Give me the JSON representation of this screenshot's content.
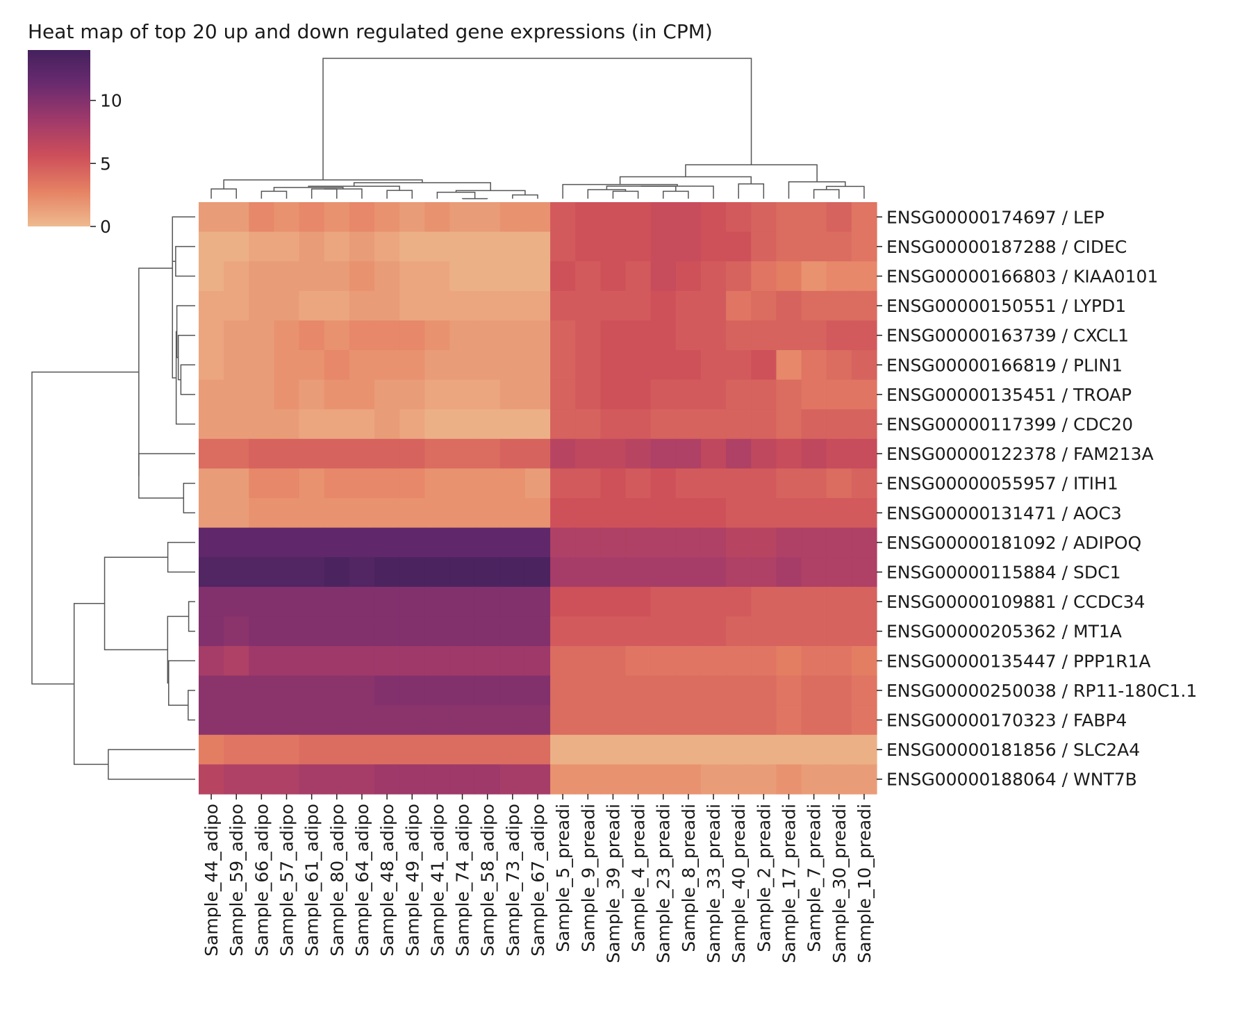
{
  "chart_data": {
    "type": "heatmap",
    "title": "Heat map of top 20 up and down regulated gene expressions (in CPM)",
    "xlabel": "",
    "ylabel": "",
    "colorbar": {
      "ticks": [
        0,
        5,
        10
      ],
      "min": 0,
      "max": 14,
      "colors": [
        "#eeba8f",
        "#e58264",
        "#cd4f5a",
        "#a03a6a",
        "#6b2b6f",
        "#44215c"
      ]
    },
    "dendrograms": {
      "rows": true,
      "columns": true
    },
    "rows": [
      "ENSG00000174697 / LEP",
      "ENSG00000187288 / CIDEC",
      "ENSG00000166803 / KIAA0101",
      "ENSG00000150551 / LYPD1",
      "ENSG00000163739 / CXCL1",
      "ENSG00000166819 / PLIN1",
      "ENSG00000135451 / TROAP",
      "ENSG00000117399 / CDC20",
      "ENSG00000122378 / FAM213A",
      "ENSG00000055957 / ITIH1",
      "ENSG00000131471 / AOC3",
      "ENSG00000181092 / ADIPOQ",
      "ENSG00000115884 / SDC1",
      "ENSG00000109881 / CCDC34",
      "ENSG00000205362 / MT1A",
      "ENSG00000135447 / PPP1R1A",
      "ENSG00000250038 / RP11-180C1.1",
      "ENSG00000170323 / FABP4",
      "ENSG00000181856 / SLC2A4",
      "ENSG00000188064 / WNT7B"
    ],
    "columns": [
      "Sample_44_adipo",
      "Sample_59_adipo",
      "Sample_66_adipo",
      "Sample_57_adipo",
      "Sample_61_adipo",
      "Sample_80_adipo",
      "Sample_64_adipo",
      "Sample_48_adipo",
      "Sample_49_adipo",
      "Sample_41_adipo",
      "Sample_74_adipo",
      "Sample_58_adipo",
      "Sample_73_adipo",
      "Sample_67_adipo",
      "Sample_5_preadi",
      "Sample_9_preadi",
      "Sample_39_preadi",
      "Sample_4_preadi",
      "Sample_23_preadi",
      "Sample_8_preadi",
      "Sample_33_preadi",
      "Sample_40_preadi",
      "Sample_2_preadi",
      "Sample_17_preadi",
      "Sample_7_preadi",
      "Sample_30_preadi",
      "Sample_10_preadi"
    ],
    "values": [
      [
        1.5,
        1.5,
        2.5,
        2.0,
        2.5,
        2.0,
        2.5,
        2.0,
        1.5,
        2.0,
        1.5,
        1.5,
        2.0,
        2.0,
        5.0,
        5.5,
        5.5,
        5.5,
        6.0,
        6.0,
        5.5,
        5.0,
        4.5,
        4.0,
        4.0,
        4.5,
        3.5
      ],
      [
        0.5,
        0.5,
        1.0,
        1.0,
        1.5,
        1.0,
        1.5,
        1.0,
        0.5,
        0.5,
        0.5,
        0.5,
        0.5,
        0.5,
        5.0,
        5.5,
        5.5,
        5.5,
        6.0,
        6.0,
        5.5,
        5.5,
        4.5,
        4.0,
        4.0,
        4.0,
        3.5
      ],
      [
        0.5,
        1.0,
        1.5,
        1.5,
        1.5,
        1.5,
        2.0,
        1.5,
        1.0,
        1.0,
        0.5,
        0.5,
        0.5,
        0.5,
        5.5,
        5.0,
        5.5,
        5.0,
        6.0,
        5.5,
        5.0,
        4.5,
        3.5,
        3.0,
        2.0,
        2.5,
        2.5
      ],
      [
        1.0,
        1.0,
        1.5,
        1.5,
        1.0,
        1.0,
        1.5,
        1.5,
        1.0,
        1.0,
        1.0,
        1.0,
        1.0,
        1.0,
        5.0,
        5.0,
        5.0,
        5.0,
        5.5,
        5.0,
        5.0,
        3.5,
        4.0,
        4.5,
        4.0,
        4.0,
        4.0
      ],
      [
        1.0,
        1.5,
        1.5,
        2.0,
        2.5,
        2.0,
        2.5,
        2.5,
        2.5,
        2.0,
        1.5,
        1.5,
        1.5,
        1.5,
        4.5,
        5.0,
        5.5,
        5.5,
        5.5,
        5.0,
        5.0,
        4.5,
        4.5,
        4.5,
        4.5,
        5.0,
        5.0
      ],
      [
        1.0,
        1.5,
        1.5,
        2.0,
        2.0,
        2.5,
        2.0,
        2.0,
        2.0,
        1.5,
        1.5,
        1.5,
        1.5,
        1.5,
        4.5,
        5.0,
        5.5,
        5.5,
        5.5,
        5.5,
        5.0,
        5.0,
        5.5,
        2.5,
        3.5,
        4.0,
        4.5
      ],
      [
        1.5,
        1.5,
        1.5,
        2.0,
        1.5,
        2.0,
        2.0,
        1.5,
        1.5,
        1.0,
        1.0,
        1.0,
        1.5,
        1.5,
        4.5,
        5.0,
        5.5,
        5.5,
        5.0,
        5.0,
        5.0,
        4.5,
        4.5,
        4.0,
        3.5,
        3.5,
        3.5
      ],
      [
        1.5,
        1.5,
        1.5,
        1.5,
        1.0,
        1.0,
        1.0,
        1.5,
        1.0,
        0.5,
        0.5,
        0.5,
        0.5,
        0.5,
        4.5,
        4.5,
        5.0,
        5.0,
        4.5,
        4.5,
        4.5,
        4.5,
        4.5,
        4.0,
        4.5,
        4.5,
        4.5
      ],
      [
        4.0,
        4.0,
        4.5,
        4.5,
        4.5,
        4.5,
        4.5,
        4.5,
        4.5,
        4.0,
        4.0,
        4.0,
        4.5,
        4.5,
        7.0,
        6.5,
        6.5,
        7.0,
        7.5,
        7.5,
        6.5,
        7.5,
        6.5,
        6.0,
        6.5,
        6.0,
        6.0
      ],
      [
        1.5,
        1.5,
        2.5,
        2.5,
        2.0,
        2.5,
        2.5,
        2.5,
        2.5,
        2.0,
        2.0,
        2.0,
        2.0,
        1.5,
        5.0,
        5.0,
        5.5,
        5.0,
        5.5,
        5.0,
        5.0,
        5.0,
        5.0,
        4.5,
        4.5,
        4.0,
        4.5
      ],
      [
        1.5,
        1.5,
        2.0,
        2.0,
        2.0,
        2.0,
        2.0,
        2.0,
        2.0,
        2.0,
        2.0,
        2.0,
        2.0,
        2.0,
        5.5,
        5.5,
        5.5,
        5.5,
        5.5,
        5.5,
        5.5,
        5.0,
        5.0,
        5.0,
        5.0,
        5.0,
        5.0
      ],
      [
        12.0,
        12.0,
        12.0,
        12.0,
        12.0,
        12.0,
        12.0,
        12.0,
        12.0,
        12.0,
        12.0,
        12.0,
        12.0,
        12.0,
        7.5,
        7.5,
        7.5,
        7.5,
        7.5,
        7.5,
        7.5,
        7.0,
        7.0,
        7.5,
        7.5,
        7.5,
        7.5
      ],
      [
        13.0,
        13.0,
        13.0,
        13.0,
        13.0,
        13.5,
        13.0,
        13.5,
        13.5,
        13.5,
        13.5,
        13.5,
        13.5,
        13.5,
        8.0,
        8.0,
        8.0,
        8.0,
        8.0,
        8.0,
        8.0,
        7.5,
        7.5,
        8.0,
        7.5,
        7.5,
        7.5
      ],
      [
        10.0,
        10.0,
        10.0,
        10.0,
        10.0,
        10.0,
        10.0,
        10.0,
        10.0,
        10.0,
        10.0,
        10.0,
        10.0,
        10.0,
        5.5,
        5.5,
        5.5,
        5.5,
        5.0,
        5.0,
        5.0,
        5.0,
        4.5,
        4.5,
        4.5,
        4.5,
        4.5
      ],
      [
        10.0,
        9.5,
        10.0,
        10.0,
        10.0,
        10.0,
        10.0,
        10.0,
        10.0,
        10.0,
        10.0,
        10.0,
        10.0,
        10.0,
        5.0,
        5.0,
        5.0,
        5.0,
        5.0,
        5.0,
        5.0,
        4.5,
        4.5,
        4.5,
        4.5,
        4.5,
        4.5
      ],
      [
        8.0,
        7.5,
        8.5,
        8.5,
        8.5,
        8.5,
        8.5,
        8.5,
        8.5,
        8.5,
        8.5,
        8.5,
        8.5,
        8.5,
        4.0,
        4.0,
        4.0,
        3.5,
        3.5,
        3.5,
        3.5,
        3.5,
        3.5,
        3.0,
        3.5,
        3.5,
        3.0
      ],
      [
        9.5,
        9.5,
        9.5,
        9.5,
        9.5,
        9.5,
        9.5,
        10.0,
        10.0,
        10.0,
        10.0,
        10.0,
        10.0,
        10.0,
        4.0,
        4.0,
        4.0,
        4.0,
        4.0,
        4.0,
        4.0,
        4.0,
        4.0,
        3.5,
        4.0,
        4.0,
        3.5
      ],
      [
        9.5,
        9.5,
        9.5,
        9.5,
        9.5,
        9.5,
        9.5,
        9.5,
        9.5,
        9.5,
        9.5,
        9.5,
        9.5,
        9.5,
        4.0,
        4.0,
        4.0,
        4.0,
        4.0,
        4.0,
        4.0,
        4.0,
        4.0,
        3.5,
        4.0,
        4.0,
        3.5
      ],
      [
        3.0,
        3.5,
        3.5,
        3.5,
        4.0,
        4.0,
        4.0,
        4.0,
        4.0,
        4.0,
        4.0,
        4.0,
        4.0,
        4.0,
        0.5,
        0.5,
        0.5,
        0.5,
        0.5,
        0.5,
        0.5,
        0.5,
        0.5,
        0.5,
        0.5,
        0.5,
        0.5
      ],
      [
        7.0,
        7.5,
        7.5,
        7.5,
        8.0,
        8.0,
        8.0,
        8.5,
        8.5,
        8.5,
        8.5,
        8.5,
        8.0,
        8.0,
        2.0,
        2.0,
        2.0,
        2.0,
        2.0,
        2.0,
        1.5,
        1.5,
        1.5,
        2.0,
        1.5,
        1.5,
        1.5
      ]
    ]
  }
}
